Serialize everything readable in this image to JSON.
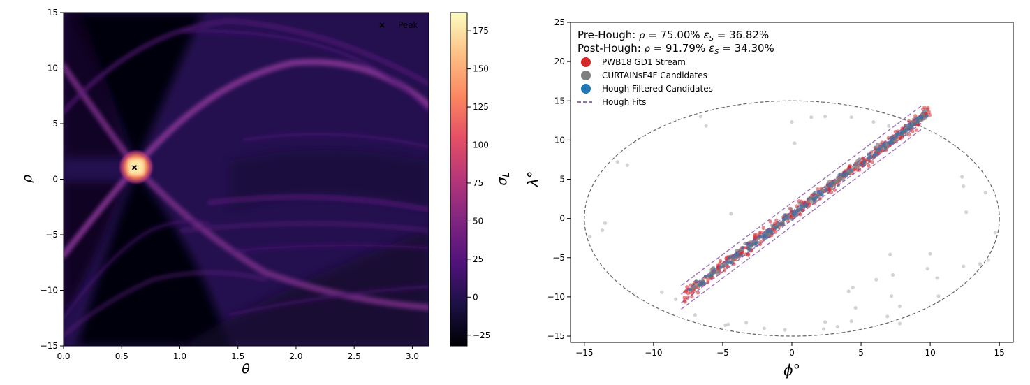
{
  "chart_data": [
    {
      "type": "heatmap",
      "xlabel": "θ",
      "ylabel": "ρ",
      "xlim": [
        0.0,
        3.1416
      ],
      "ylim": [
        -15,
        15
      ],
      "xticks": [
        0.0,
        0.5,
        1.0,
        1.5,
        2.0,
        2.5,
        3.0
      ],
      "xtick_labels": [
        "0.0",
        "0.5",
        "1.0",
        "1.5",
        "2.0",
        "2.5",
        "3.0"
      ],
      "yticks": [
        -15,
        -10,
        -5,
        0,
        5,
        10,
        15
      ],
      "ytick_labels": [
        "−15",
        "−10",
        "−5",
        "0",
        "5",
        "10",
        "15"
      ],
      "peak": {
        "theta": 0.61,
        "rho": 1.05,
        "value": 185
      },
      "legend": [
        {
          "label": "Peak",
          "marker": "x"
        }
      ],
      "legend_loc": "top-right",
      "colorbar": {
        "label": "σ_L",
        "cmap": "magma",
        "range": [
          -32,
          187
        ],
        "ticks": [
          -25,
          0,
          25,
          50,
          75,
          100,
          125,
          150,
          175
        ],
        "tick_labels": [
          "−25",
          "0",
          "25",
          "50",
          "75",
          "100",
          "125",
          "150",
          "175"
        ]
      }
    },
    {
      "type": "scatter",
      "xlabel": "ϕ°",
      "ylabel": "λ°",
      "xlim": [
        -16,
        16
      ],
      "ylim": [
        -15.8,
        25
      ],
      "xticks": [
        -15,
        -10,
        -5,
        0,
        5,
        10,
        15
      ],
      "xtick_labels": [
        "−15",
        "−10",
        "−5",
        "0",
        "5",
        "10",
        "15"
      ],
      "yticks": [
        -15,
        -10,
        -5,
        0,
        5,
        10,
        15,
        20,
        25
      ],
      "ytick_labels": [
        "−15",
        "−10",
        "−5",
        "0",
        "5",
        "10",
        "15",
        "20",
        "25"
      ],
      "annotations": [
        {
          "label": "Pre-Hough:",
          "rho": "75.00%",
          "eps": "36.82%"
        },
        {
          "label": "Post-Hough:",
          "rho": "91.79%",
          "eps": "34.30%"
        }
      ],
      "legend": [
        {
          "label": "PWB18 GD1 Stream",
          "color": "#d62728",
          "marker": "circle"
        },
        {
          "label": "CURTAINsF4F Candidates",
          "color": "#7f7f7f",
          "marker": "circle"
        },
        {
          "label": "Hough Filtered Candidates",
          "color": "#1f77b4",
          "marker": "circle"
        },
        {
          "label": "Hough Fits",
          "color": "#7b3fa0",
          "marker": "dashed"
        }
      ],
      "legend_loc": "top-left",
      "ellipse": {
        "center": [
          0,
          0
        ],
        "semi_x": 15,
        "semi_y": 15
      },
      "stream_band": {
        "phi_range": [
          -7.8,
          10
        ],
        "slope": 1.32,
        "intercept": 0.5,
        "width": 0.6
      },
      "hough_fits": [
        {
          "slope": 1.32,
          "intercept": 2.0
        },
        {
          "slope": 1.32,
          "intercept": 0.9
        },
        {
          "slope": 1.32,
          "intercept": -0.2
        },
        {
          "slope": 1.32,
          "intercept": -1.0
        }
      ],
      "background_points": [
        [
          -14.6,
          -2.3
        ],
        [
          -13.5,
          -0.6
        ],
        [
          -13.7,
          -1.5
        ],
        [
          -12.6,
          7.2
        ],
        [
          -11.9,
          6.8
        ],
        [
          -9.4,
          -9.4
        ],
        [
          -6.6,
          13.0
        ],
        [
          -6.2,
          11.8
        ],
        [
          -8.4,
          -10.3
        ],
        [
          -7.0,
          -12.3
        ],
        [
          -3.3,
          -13.3
        ],
        [
          -2.0,
          -14.0
        ],
        [
          -4.4,
          0.6
        ],
        [
          -4.6,
          -13.5
        ],
        [
          -0.5,
          -14.2
        ],
        [
          0.2,
          9.6
        ],
        [
          0.0,
          12.3
        ],
        [
          1.4,
          12.9
        ],
        [
          2.4,
          13.0
        ],
        [
          4.3,
          12.9
        ],
        [
          5.9,
          12.3
        ],
        [
          7.0,
          11.8
        ],
        [
          8.2,
          11.1
        ],
        [
          12.3,
          5.3
        ],
        [
          12.4,
          4.1
        ],
        [
          12.6,
          0.8
        ],
        [
          14.0,
          3.3
        ],
        [
          14.7,
          -1.8
        ],
        [
          14.2,
          -5.3
        ],
        [
          13.6,
          -5.8
        ],
        [
          12.4,
          -6.1
        ],
        [
          10.5,
          -7.6
        ],
        [
          10.0,
          -4.5
        ],
        [
          9.8,
          -6.4
        ],
        [
          10.6,
          -9.9
        ],
        [
          7.1,
          -4.6
        ],
        [
          7.3,
          -7.2
        ],
        [
          6.1,
          -7.8
        ],
        [
          7.2,
          -9.9
        ],
        [
          4.4,
          -8.8
        ],
        [
          4.1,
          -9.3
        ],
        [
          6.9,
          -12.5
        ],
        [
          7.8,
          -13.4
        ],
        [
          4.3,
          -13.1
        ],
        [
          3.3,
          -13.8
        ],
        [
          2.3,
          -14.1
        ],
        [
          4.6,
          -11.4
        ],
        [
          2.4,
          -13.2
        ],
        [
          -4.8,
          -13.6
        ],
        [
          7.8,
          -11.2
        ]
      ]
    }
  ]
}
